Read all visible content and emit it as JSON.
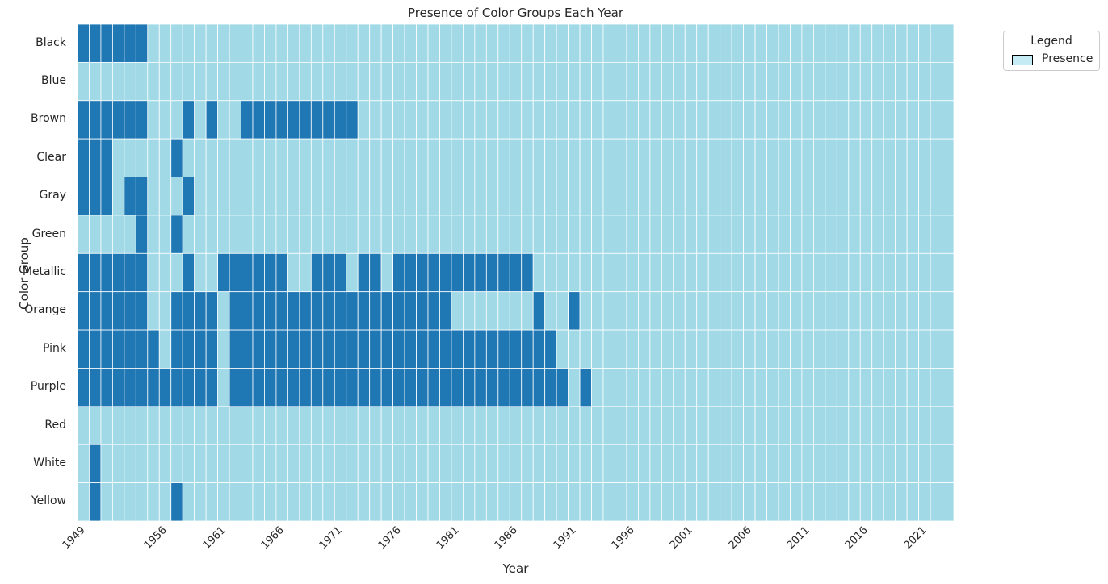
{
  "chart_data": {
    "type": "heatmap",
    "title": "Presence of Color Groups Each Year",
    "xlabel": "Year",
    "ylabel": "Color Group",
    "x_start": 1949,
    "x_end": 2023,
    "x_tick_labels": [
      "1949",
      "1956",
      "1961",
      "1966",
      "1971",
      "1976",
      "1981",
      "1986",
      "1991",
      "1996",
      "2001",
      "2006",
      "2011",
      "2016",
      "2021"
    ],
    "categories": [
      "Black",
      "Blue",
      "Brown",
      "Clear",
      "Gray",
      "Green",
      "Metallic",
      "Orange",
      "Pink",
      "Purple",
      "Red",
      "White",
      "Yellow"
    ],
    "colors": {
      "present": "#1f77b4",
      "absent": "#a1dae6",
      "grid": "#ffffff"
    },
    "present_years": {
      "Black": [
        1949,
        1950,
        1951,
        1952,
        1953,
        1954
      ],
      "Blue": [],
      "Brown": [
        1949,
        1950,
        1951,
        1952,
        1953,
        1954,
        1958,
        1960,
        1963,
        1964,
        1965,
        1966,
        1967,
        1968,
        1969,
        1970,
        1971,
        1972
      ],
      "Clear": [
        1949,
        1950,
        1951,
        1957
      ],
      "Gray": [
        1949,
        1950,
        1951,
        1953,
        1954,
        1958
      ],
      "Green": [
        1954,
        1957
      ],
      "Metallic": [
        1949,
        1950,
        1951,
        1952,
        1953,
        1954,
        1958,
        1961,
        1962,
        1963,
        1964,
        1965,
        1966,
        1969,
        1970,
        1971,
        1973,
        1974,
        1976,
        1977,
        1978,
        1979,
        1980,
        1981,
        1982,
        1983,
        1984,
        1985,
        1986,
        1987
      ],
      "Orange": [
        1949,
        1950,
        1951,
        1952,
        1953,
        1954,
        1957,
        1958,
        1959,
        1960,
        1962,
        1963,
        1964,
        1965,
        1966,
        1967,
        1968,
        1969,
        1970,
        1971,
        1972,
        1973,
        1974,
        1975,
        1976,
        1977,
        1978,
        1979,
        1980,
        1988,
        1991
      ],
      "Pink": [
        1949,
        1950,
        1951,
        1952,
        1953,
        1954,
        1955,
        1957,
        1958,
        1959,
        1960,
        1962,
        1963,
        1964,
        1965,
        1966,
        1967,
        1968,
        1969,
        1970,
        1971,
        1972,
        1973,
        1974,
        1975,
        1976,
        1977,
        1978,
        1979,
        1980,
        1981,
        1982,
        1983,
        1984,
        1985,
        1986,
        1987,
        1988,
        1989
      ],
      "Purple": [
        1949,
        1950,
        1951,
        1952,
        1953,
        1954,
        1955,
        1956,
        1957,
        1958,
        1959,
        1960,
        1962,
        1963,
        1964,
        1965,
        1966,
        1967,
        1968,
        1969,
        1970,
        1971,
        1972,
        1973,
        1974,
        1975,
        1976,
        1977,
        1978,
        1979,
        1980,
        1981,
        1982,
        1983,
        1984,
        1985,
        1986,
        1987,
        1988,
        1989,
        1990,
        1992
      ],
      "Red": [],
      "White": [
        1950
      ],
      "Yellow": [
        1950,
        1957
      ]
    },
    "legend": {
      "title": "Legend",
      "entries": [
        "Presence"
      ],
      "placement": "outside-top-right"
    },
    "grid": true
  }
}
